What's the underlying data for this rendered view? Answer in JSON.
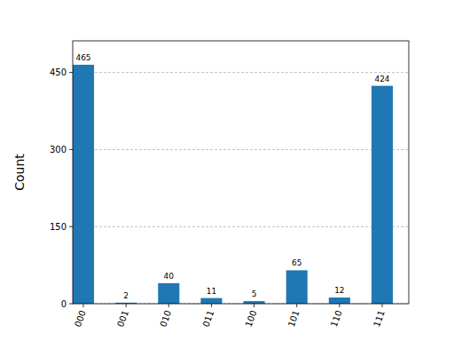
{
  "chart_data": {
    "type": "bar",
    "y_label": "Count",
    "categories": [
      "000",
      "001",
      "010",
      "011",
      "100",
      "101",
      "110",
      "111"
    ],
    "values": [
      465,
      2,
      40,
      11,
      5,
      65,
      12,
      424
    ],
    "color": "#1f77b4",
    "ylim": [
      0,
      511.5
    ],
    "yticks": [
      0,
      150,
      300,
      450
    ],
    "grid": true,
    "data_labels": true
  }
}
